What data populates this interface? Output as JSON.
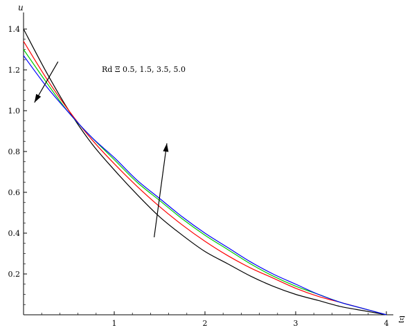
{
  "chart_data": {
    "type": "line",
    "title": "",
    "xlabel": "Ξ",
    "ylabel": "u",
    "xlim": [
      0,
      4
    ],
    "ylim": [
      0,
      1.4
    ],
    "x_ticks": [
      1,
      2,
      3,
      4
    ],
    "y_ticks": [
      0.2,
      0.4,
      0.6,
      0.8,
      1.0,
      1.2,
      1.4
    ],
    "y_tick_labels": [
      "0.2",
      "0.4",
      "0.6",
      "0.8",
      "1.0",
      "1.2",
      "1.4"
    ],
    "annotation": "Rd Ξ 0.5, 1.5, 3.5, 5.0",
    "grid": false,
    "series": [
      {
        "color": "#000000",
        "x": [
          0,
          0.25,
          0.5,
          0.75,
          1.0,
          1.25,
          1.5,
          1.75,
          2.0,
          2.25,
          2.5,
          2.75,
          3.0,
          3.25,
          3.5,
          3.75,
          4.0
        ],
        "values": [
          1.4,
          1.19,
          1.0,
          0.84,
          0.71,
          0.59,
          0.48,
          0.39,
          0.31,
          0.25,
          0.19,
          0.14,
          0.1,
          0.07,
          0.04,
          0.02,
          0.0
        ]
      },
      {
        "color": "#ff0000",
        "x": [
          0,
          0.25,
          0.5,
          0.75,
          1.0,
          1.25,
          1.5,
          1.75,
          2.0,
          2.25,
          2.5,
          2.75,
          3.0,
          3.25,
          3.5,
          3.75,
          4.0
        ],
        "values": [
          1.34,
          1.16,
          1.0,
          0.86,
          0.74,
          0.63,
          0.53,
          0.44,
          0.36,
          0.29,
          0.23,
          0.18,
          0.13,
          0.09,
          0.06,
          0.03,
          0.0
        ]
      },
      {
        "color": "#00cc00",
        "x": [
          0,
          0.25,
          0.5,
          0.75,
          1.0,
          1.25,
          1.5,
          1.75,
          2.0,
          2.25,
          2.5,
          2.75,
          3.0,
          3.25,
          3.5,
          3.75,
          4.0
        ],
        "values": [
          1.3,
          1.14,
          0.99,
          0.87,
          0.76,
          0.65,
          0.56,
          0.47,
          0.39,
          0.32,
          0.25,
          0.19,
          0.14,
          0.1,
          0.06,
          0.03,
          0.0
        ]
      },
      {
        "color": "#0000ff",
        "x": [
          0,
          0.25,
          0.5,
          0.75,
          1.0,
          1.25,
          1.5,
          1.75,
          2.0,
          2.25,
          2.5,
          2.75,
          3.0,
          3.25,
          3.5,
          3.75,
          4.0
        ],
        "values": [
          1.27,
          1.12,
          0.99,
          0.87,
          0.77,
          0.66,
          0.57,
          0.48,
          0.4,
          0.33,
          0.26,
          0.2,
          0.15,
          0.1,
          0.06,
          0.03,
          0.0
        ]
      }
    ],
    "arrows": [
      {
        "from": [
          0.38,
          1.24
        ],
        "to": [
          0.12,
          1.04
        ]
      },
      {
        "from": [
          1.44,
          0.38
        ],
        "to": [
          1.58,
          0.84
        ]
      }
    ]
  }
}
